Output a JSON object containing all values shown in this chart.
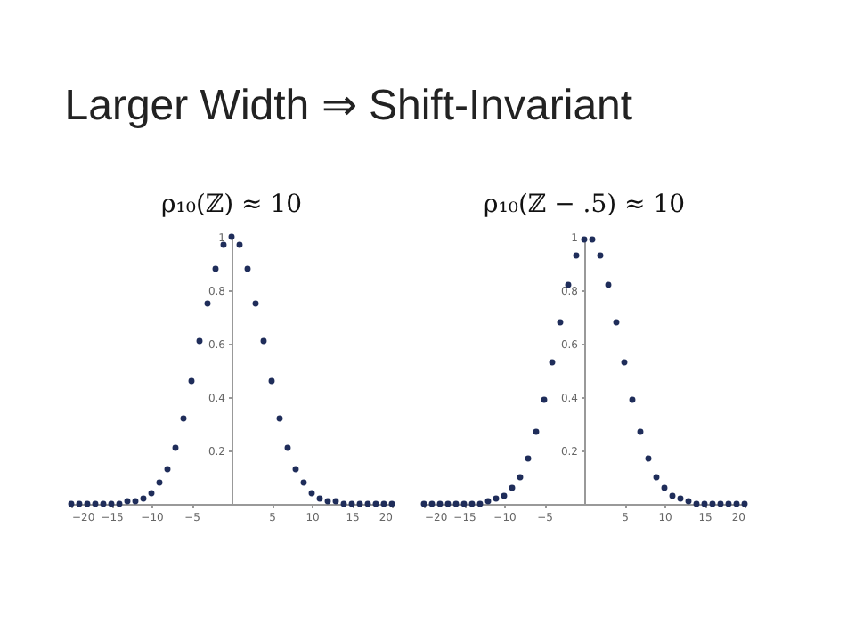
{
  "chart_data": [
    {
      "type": "scatter",
      "title": "Larger Width ⇒ Shift-Invariant",
      "subtitle": "ρ₁₀(ℤ) ≈ 10",
      "marker": "circle",
      "color": "#1f2d5a",
      "x": [
        -20,
        -19,
        -18,
        -17,
        -16,
        -15,
        -14,
        -13,
        -12,
        -11,
        -10,
        -9,
        -8,
        -7,
        -6,
        -5,
        -4,
        -3,
        -2,
        -1,
        0,
        1,
        2,
        3,
        4,
        5,
        6,
        7,
        8,
        9,
        10,
        11,
        12,
        13,
        14,
        15,
        16,
        17,
        18,
        19,
        20
      ],
      "values": [
        0,
        0,
        0,
        0,
        0,
        0,
        0,
        0.01,
        0.01,
        0.02,
        0.04,
        0.08,
        0.13,
        0.21,
        0.32,
        0.46,
        0.61,
        0.75,
        0.88,
        0.97,
        1,
        0.97,
        0.88,
        0.75,
        0.61,
        0.46,
        0.32,
        0.21,
        0.13,
        0.08,
        0.04,
        0.02,
        0.01,
        0.01,
        0,
        0,
        0,
        0,
        0,
        0,
        0
      ],
      "xlim": [
        -20,
        20
      ],
      "ylim": [
        0,
        1
      ],
      "xticks": [
        -20,
        -15,
        -10,
        -5,
        5,
        10,
        15,
        20
      ],
      "yticks": [
        0.2,
        0.4,
        0.6,
        0.8,
        1
      ]
    },
    {
      "type": "scatter",
      "subtitle": "ρ₁₀(ℤ − .5) ≈ 10",
      "marker": "circle",
      "color": "#1f2d5a",
      "x": [
        -20,
        -19,
        -18,
        -17,
        -16,
        -15,
        -14,
        -13,
        -12,
        -11,
        -10,
        -9,
        -8,
        -7,
        -6,
        -5,
        -4,
        -3,
        -2,
        -1,
        0,
        1,
        2,
        3,
        4,
        5,
        6,
        7,
        8,
        9,
        10,
        11,
        12,
        13,
        14,
        15,
        16,
        17,
        18,
        19,
        20
      ],
      "values": [
        0,
        0,
        0,
        0,
        0,
        0,
        0,
        0,
        0.01,
        0.02,
        0.03,
        0.06,
        0.1,
        0.17,
        0.27,
        0.39,
        0.53,
        0.68,
        0.82,
        0.93,
        0.99,
        0.99,
        0.93,
        0.82,
        0.68,
        0.53,
        0.39,
        0.27,
        0.17,
        0.1,
        0.06,
        0.03,
        0.02,
        0.01,
        0,
        0,
        0,
        0,
        0,
        0,
        0
      ],
      "xlim": [
        -20,
        20
      ],
      "ylim": [
        0,
        1
      ],
      "xticks": [
        -20,
        -15,
        -10,
        -5,
        5,
        10,
        15,
        20
      ],
      "yticks": [
        0.2,
        0.4,
        0.6,
        0.8,
        1
      ]
    }
  ]
}
